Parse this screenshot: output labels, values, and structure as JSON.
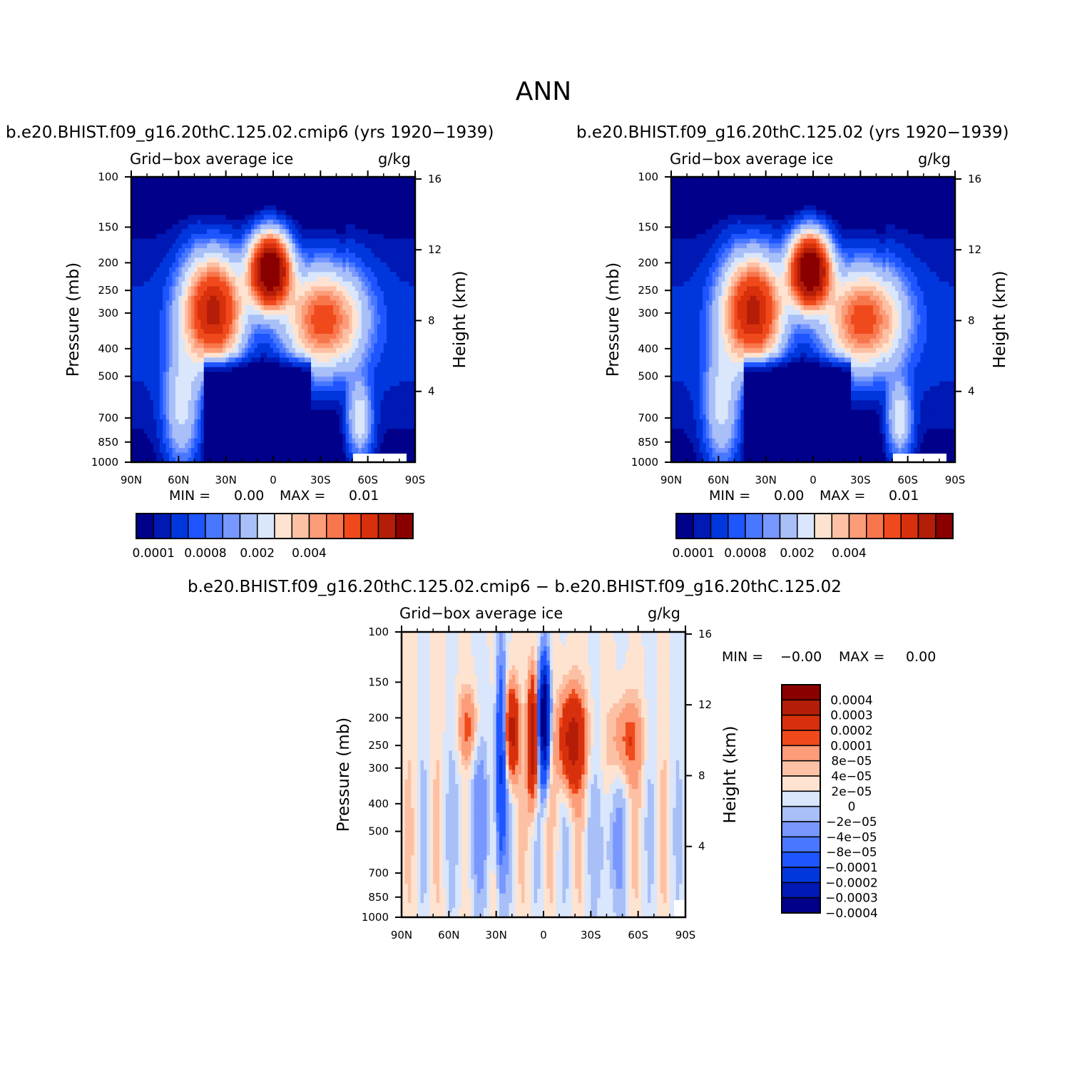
{
  "title": "ANN",
  "panels": [
    {
      "id": "panel1",
      "case": "b.e20.BHIST.f09_g16.20thC.125.02.cmip6 (yrs 1920−1939)",
      "variable": "Grid−box average ice",
      "units": "g/kg",
      "min_label": "MIN =",
      "min_value": "0.00",
      "max_label": "MAX =",
      "max_value": "0.01"
    },
    {
      "id": "panel2",
      "case": "b.e20.BHIST.f09_g16.20thC.125.02 (yrs 1920−1939)",
      "variable": "Grid−box average ice",
      "units": "g/kg",
      "min_label": "MIN =",
      "min_value": "0.00",
      "max_label": "MAX =",
      "max_value": "0.01"
    },
    {
      "id": "diff",
      "case": "b.e20.BHIST.f09_g16.20thC.125.02.cmip6 − b.e20.BHIST.f09_g16.20thC.125.02",
      "variable": "Grid−box average ice",
      "units": "g/kg",
      "min_label": "MIN =",
      "min_value": "−0.00",
      "max_label": "MAX =",
      "max_value": "0.00"
    }
  ],
  "axes": {
    "x_ticks": [
      "90N",
      "60N",
      "30N",
      "0",
      "30S",
      "60S",
      "90S"
    ],
    "pressure_ticks": [
      "100",
      "150",
      "200",
      "250",
      "300",
      "400",
      "500",
      "700",
      "850",
      "1000"
    ],
    "height_ticks": [
      "16",
      "12",
      "8",
      "4"
    ],
    "ylabel": "Pressure (mb)",
    "ylabel_right": "Height (km)"
  },
  "chart_data": [
    {
      "type": "heatmap",
      "title": "b.e20.BHIST.f09_g16.20thC.125.02.cmip6 (yrs 1920−1939)",
      "subtitle": "Grid−box average ice",
      "units": "g/kg",
      "xlabel": "",
      "ylabel": "Pressure (mb)",
      "xlim": [
        90,
        -90
      ],
      "ylim": [
        1000,
        100
      ],
      "colorbar_ticks": [
        "0.0001",
        "0.0008",
        "0.002",
        "0.004"
      ],
      "colors": [
        "#00008a",
        "#0019b4",
        "#0037dd",
        "#1e55ff",
        "#4878ff",
        "#7897ff",
        "#a8bff7",
        "#d9e6fb",
        "#ffe3d1",
        "#fcc1a5",
        "#fc9c78",
        "#f8764c",
        "#f04a1c",
        "#d8300c",
        "#b41d08",
        "#8a0000"
      ]
    },
    {
      "type": "heatmap",
      "title": "b.e20.BHIST.f09_g16.20thC.125.02 (yrs 1920−1939)",
      "subtitle": "Grid−box average ice",
      "units": "g/kg",
      "xlabel": "",
      "ylabel": "Pressure (mb)",
      "xlim": [
        90,
        -90
      ],
      "ylim": [
        1000,
        100
      ],
      "colorbar_ticks": [
        "0.0001",
        "0.0008",
        "0.002",
        "0.004"
      ],
      "colors": [
        "#00008a",
        "#0019b4",
        "#0037dd",
        "#1e55ff",
        "#4878ff",
        "#7897ff",
        "#a8bff7",
        "#d9e6fb",
        "#ffe3d1",
        "#fcc1a5",
        "#fc9c78",
        "#f8764c",
        "#f04a1c",
        "#d8300c",
        "#b41d08",
        "#8a0000"
      ]
    },
    {
      "type": "heatmap",
      "title": "b.e20.BHIST.f09_g16.20thC.125.02.cmip6 − b.e20.BHIST.f09_g16.20thC.125.02",
      "subtitle": "Grid−box average ice",
      "units": "g/kg",
      "xlabel": "",
      "ylabel": "Pressure (mb)",
      "xlim": [
        90,
        -90
      ],
      "ylim": [
        1000,
        100
      ],
      "colorbar_ticks": [
        "0.0004",
        "0.0003",
        "0.0002",
        "0.0001",
        "8e−05",
        "4e−05",
        "2e−05",
        "0",
        "−2e−05",
        "−4e−05",
        "−8e−05",
        "−0.0001",
        "−0.0002",
        "−0.0003",
        "−0.0004"
      ],
      "colors": [
        "#8a0000",
        "#b41d08",
        "#d8300c",
        "#f04a1c",
        "#fc9c78",
        "#fcc1a5",
        "#ffe3d1",
        "#d9e6fb",
        "#a8bff7",
        "#7897ff",
        "#4878ff",
        "#1e55ff",
        "#0037dd",
        "#0019b4",
        "#00008a"
      ]
    }
  ]
}
